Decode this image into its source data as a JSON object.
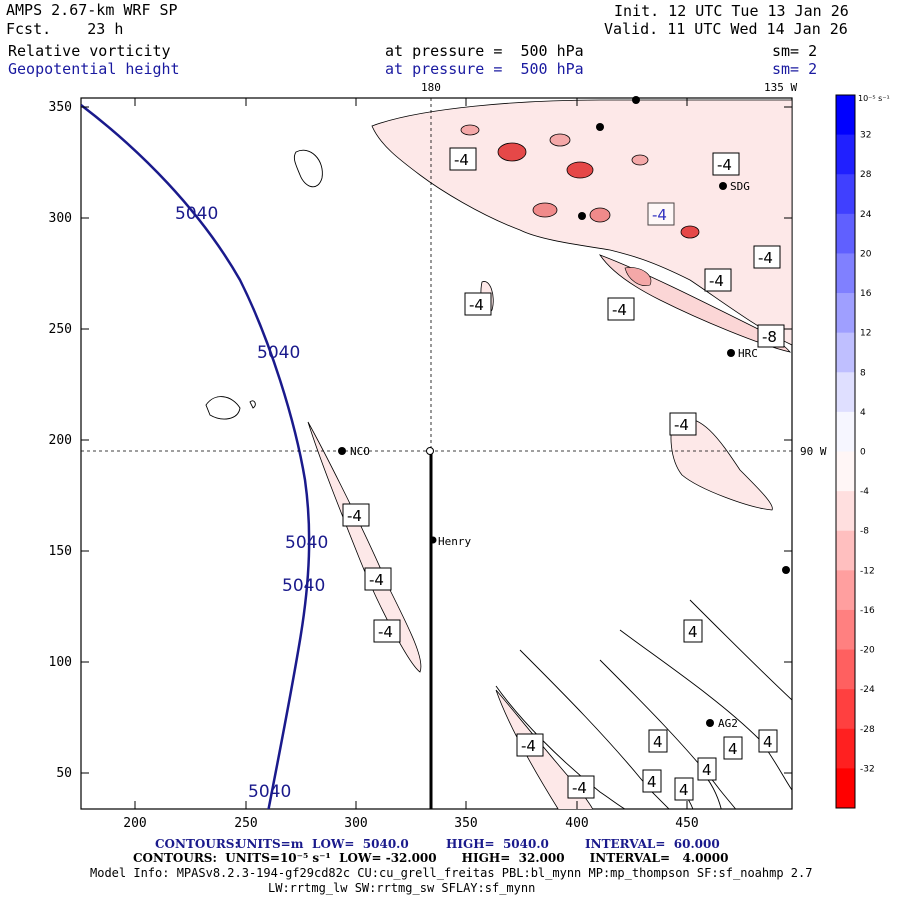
{
  "header": {
    "model": "AMPS 2.67-km WRF SP",
    "forecast": "Fcst.    23 h",
    "init": "Init. 12 UTC Tue 13 Jan 26",
    "valid": "Valid. 11 UTC Wed 14 Jan 26",
    "field1_name": "Relative vorticity",
    "field1_level": "at pressure =  500 hPa",
    "field1_smooth": "sm= 2",
    "field2_name": "Geopotential height",
    "field2_level": "at pressure =  500 hPa",
    "field2_smooth": "sm= 2"
  },
  "map": {
    "lon_180": "180",
    "lon_135w": "135 W",
    "lon_90w": "90 W",
    "x_ticks": [
      "200",
      "250",
      "300",
      "350",
      "400",
      "450"
    ],
    "y_ticks": [
      "350",
      "300",
      "250",
      "200",
      "150",
      "100",
      "50"
    ],
    "stations": [
      "NCO",
      "Henry",
      "HRC",
      "AG2",
      "SDG"
    ],
    "height_label": "5040",
    "height_labels_count": 5,
    "vort_labels": [
      "-4",
      "-4",
      "-4",
      "-4",
      "-4",
      "-4",
      "-4",
      "-4",
      "-4",
      "-4",
      "-4",
      "-4",
      "-4",
      "-8"
    ],
    "pos_labels": [
      "4",
      "4",
      "4",
      "4",
      "4",
      "4",
      "4"
    ]
  },
  "colorbar": {
    "unit": "10⁻⁵ s⁻¹",
    "ticks": [
      "32",
      "28",
      "24",
      "20",
      "16",
      "12",
      "8",
      "4",
      "0",
      "-4",
      "-8",
      "-12",
      "-16",
      "-20",
      "-24",
      "-28",
      "-32"
    ],
    "top_color": "#0000ff",
    "bottom_color": "#ff0000"
  },
  "footer": {
    "contours1_label": "CONTOURS:",
    "contours1_units": "UNITS=m",
    "contours1_low": "LOW=  5040.0",
    "contours1_high": "HIGH=  5040.0",
    "contours1_interval": "INTERVAL=  60.000",
    "contours2": "CONTOURS:  UNITS=10⁻⁵ s⁻¹  LOW= -32.000      HIGH=  32.000      INTERVAL=   4.0000",
    "model_info": "Model Info: MPASv8.2.3-194-gf29cd82c CU:cu_grell_freitas PBL:bl_mynn MP:mp_thompson SF:sf_noahmp 2.7",
    "model_info2": "LW:rrtmg_lw SW:rrtmg_sw SFLAY:sf_mynn"
  }
}
